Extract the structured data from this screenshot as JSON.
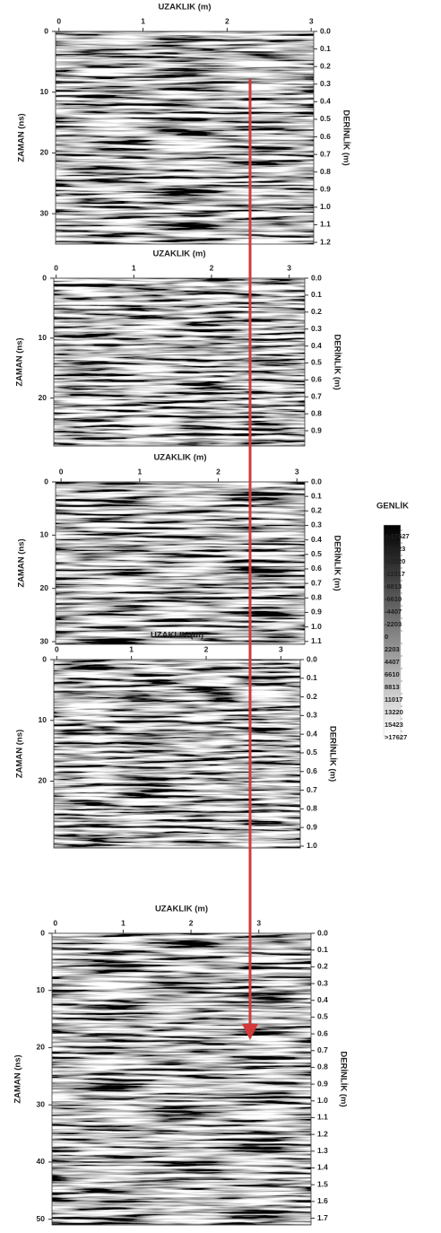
{
  "chart_data": [
    {
      "type": "image",
      "xlabel": "UZAKLIK (m)",
      "ylabel": "ZAMAN (ns)",
      "y2label": "DERİNLİK (m)",
      "xlim": [
        -0.04,
        3.03
      ],
      "xticks": [
        0,
        1,
        2,
        3
      ],
      "ylim": [
        0,
        35
      ],
      "yticks": [
        0,
        10,
        20,
        30
      ],
      "y2lim": [
        0,
        1.21
      ],
      "y2ticks": [
        {
          "value": 0,
          "label": "0.0"
        },
        0.1,
        0.2,
        0.3,
        0.4,
        0.5,
        0.6,
        0.7,
        0.8,
        0.9,
        {
          "value": 1,
          "label": "1.0"
        },
        1.1,
        1.2
      ]
    },
    {
      "type": "image",
      "xlabel": "UZAKLIK (m)",
      "ylabel": "ZAMAN (ns)",
      "y2label": "DERİNLİK (m)",
      "xlim": [
        -0.03,
        3.2
      ],
      "xticks": [
        0,
        1,
        2,
        3
      ],
      "ylim": [
        0,
        28
      ],
      "yticks": [
        0,
        10,
        20
      ],
      "y2lim": [
        0,
        0.99
      ],
      "y2ticks": [
        {
          "value": 0,
          "label": "0.0"
        },
        0.1,
        0.2,
        0.3,
        0.4,
        0.5,
        0.6,
        0.7,
        0.8,
        0.9
      ]
    },
    {
      "type": "image",
      "xlabel": "UZAKLIK (m)",
      "ylabel": "ZAMAN (ns)",
      "y2label": "DERİNLİK (m)",
      "xlim": [
        -0.07,
        3.1
      ],
      "xticks": [
        0,
        1,
        2,
        3
      ],
      "ylim": [
        0,
        30.5
      ],
      "yticks": [
        0,
        10,
        20,
        30
      ],
      "y2lim": [
        0,
        1.12
      ],
      "y2ticks": [
        {
          "value": 0,
          "label": "0.0"
        },
        0.1,
        0.2,
        0.3,
        0.4,
        0.5,
        0.6,
        0.7,
        0.8,
        0.9,
        {
          "value": 1,
          "label": "1.0"
        },
        1.1
      ]
    },
    {
      "type": "image",
      "xlabel": "UZAKLIK (m)",
      "ylabel": "ZAMAN (ns)",
      "y2label": "DERİNLİK (m)",
      "xlim": [
        -0.04,
        3.26
      ],
      "xticks": [
        0,
        1,
        2,
        3
      ],
      "ylim": [
        0,
        31
      ],
      "yticks": [
        0,
        10,
        20
      ],
      "y2lim": [
        0,
        1.01
      ],
      "y2ticks": [
        {
          "value": 0,
          "label": "0.0"
        },
        0.1,
        0.2,
        0.3,
        0.4,
        0.5,
        0.6,
        0.7,
        0.8,
        0.9,
        {
          "value": 1,
          "label": "1.0"
        }
      ]
    },
    {
      "type": "image",
      "xlabel": "UZAKLIK (m)",
      "ylabel": "ZAMAN (ns)",
      "y2label": "DERİNLİK (m)",
      "xlim": [
        -0.05,
        3.77
      ],
      "xticks": [
        0,
        1,
        2,
        3
      ],
      "ylim": [
        0,
        51
      ],
      "yticks": [
        0,
        10,
        20,
        30,
        40,
        50
      ],
      "y2lim": [
        0,
        1.74
      ],
      "y2ticks": [
        {
          "value": 0,
          "label": "0.0"
        },
        0.1,
        0.2,
        0.3,
        0.4,
        0.5,
        0.6,
        0.7,
        0.8,
        0.9,
        {
          "value": 1,
          "label": "1.0"
        },
        1.1,
        1.2,
        1.3,
        1.4,
        1.5,
        1.6,
        1.7
      ]
    }
  ],
  "colorbar": {
    "title": "GENLİK",
    "clim": [
      -17627,
      17627
    ],
    "colors": [
      "#000000",
      "#ffffff"
    ],
    "ticks": [
      {
        "value": -17627,
        "label": "<-17627"
      },
      -15423,
      -13220,
      -11017,
      -8813,
      -6610,
      -4407,
      -2203,
      0,
      2203,
      4407,
      6610,
      8813,
      11017,
      13220,
      15423,
      {
        "value": 17627,
        "label": ">17627"
      }
    ]
  }
}
